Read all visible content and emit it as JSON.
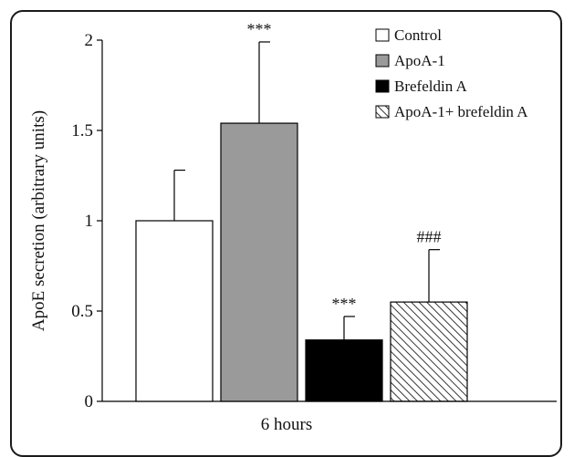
{
  "chart_data": {
    "type": "bar",
    "xlabel": "6 hours",
    "ylabel": "ApoE secretion (arbitrary units)",
    "ylim": [
      0,
      2
    ],
    "yticks": [
      "0",
      "0.5",
      "1",
      "1.5",
      "2"
    ],
    "yticks_values": [
      0,
      0.5,
      1,
      1.5,
      2
    ],
    "grid": false,
    "legend_position": "top-right",
    "series": [
      {
        "name": "Control",
        "value": 1.0,
        "error": 0.28,
        "annotation": "",
        "fill": "#ffffff",
        "pattern": "none"
      },
      {
        "name": "ApoA-1",
        "value": 1.54,
        "error": 0.45,
        "annotation": "***",
        "fill": "#9a9a9a",
        "pattern": "none"
      },
      {
        "name": "Brefeldin A",
        "value": 0.34,
        "error": 0.13,
        "annotation": "***",
        "fill": "#000000",
        "pattern": "none"
      },
      {
        "name": "ApoA-1+ brefeldin A",
        "value": 0.55,
        "error": 0.29,
        "annotation": "###",
        "fill": "#ffffff",
        "pattern": "hatch"
      }
    ]
  }
}
